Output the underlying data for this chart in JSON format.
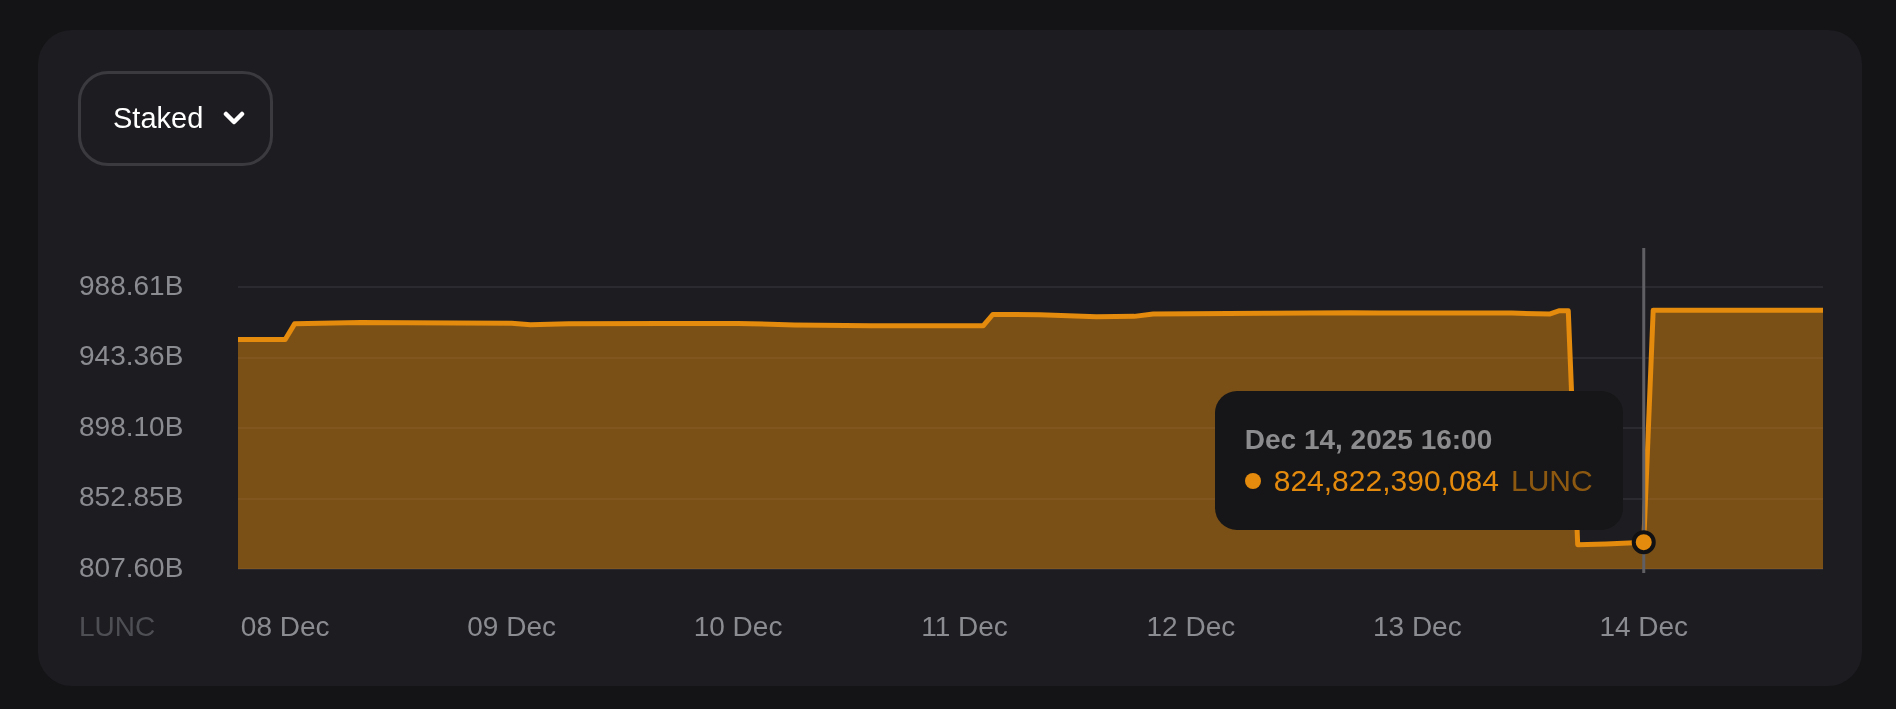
{
  "chart_data": {
    "type": "area",
    "title": "Staked",
    "ylabel": "LUNC",
    "x": [
      "2025-12-08T11:00",
      "2025-12-08T16:00",
      "2025-12-08T17:00",
      "2025-12-09T00:00",
      "2025-12-09T10:00",
      "2025-12-09T16:00",
      "2025-12-09T18:00",
      "2025-12-09T22:00",
      "2025-12-10T08:00",
      "2025-12-10T16:00",
      "2025-12-10T22:00",
      "2025-12-11T06:00",
      "2025-12-11T18:00",
      "2025-12-11T19:00",
      "2025-12-12T00:00",
      "2025-12-12T06:00",
      "2025-12-12T10:00",
      "2025-12-12T12:00",
      "2025-12-13T00:00",
      "2025-12-13T09:00",
      "2025-12-13T12:00",
      "2025-12-14T02:00",
      "2025-12-14T06:00",
      "2025-12-14T07:00",
      "2025-12-14T08:00",
      "2025-12-14T09:00",
      "2025-12-14T12:00",
      "2025-12-14T15:00",
      "2025-12-14T16:00",
      "2025-12-14T17:00",
      "2025-12-15T11:00"
    ],
    "series": [
      {
        "color": "#e48a0c",
        "values": [
          955.0,
          955.0,
          965.0,
          965.8,
          965.6,
          965.4,
          964.4,
          965.0,
          965.3,
          965.3,
          964.3,
          963.8,
          963.8,
          971.0,
          970.9,
          969.6,
          969.8,
          971.3,
          971.8,
          972.2,
          971.9,
          971.9,
          971.3,
          973.4,
          973.4,
          823.2,
          823.6,
          824.4,
          824.8,
          973.7,
          973.7
        ]
      },
      {
        "type": "scatter",
        "x": [
          "2025-12-14T16:00"
        ],
        "values": [
          824.8
        ],
        "color": "#e48a0c",
        "marker": "circle"
      }
    ],
    "xlim": [
      "2025-12-08T11:00",
      "2025-12-15T11:00"
    ],
    "xticks": [
      {
        "value": "2025-12-08T16:00",
        "label": "08 Dec"
      },
      {
        "value": "2025-12-09T16:00",
        "label": "09 Dec"
      },
      {
        "value": "2025-12-10T16:00",
        "label": "10 Dec"
      },
      {
        "value": "2025-12-11T16:00",
        "label": "11 Dec"
      },
      {
        "value": "2025-12-12T16:00",
        "label": "12 Dec"
      },
      {
        "value": "2025-12-13T16:00",
        "label": "13 Dec"
      },
      {
        "value": "2025-12-14T16:00",
        "label": "14 Dec"
      }
    ],
    "ylim": [
      807.6,
      1013.7
    ],
    "yticks": [
      {
        "value": 807.6,
        "label": "807.60B"
      },
      {
        "value": 852.85,
        "label": "852.85B"
      },
      {
        "value": 898.1,
        "label": "898.10B"
      },
      {
        "value": 943.36,
        "label": "943.36B"
      },
      {
        "value": 988.61,
        "label": "988.61B"
      }
    ],
    "grid": "y",
    "legend": false,
    "ref_lines": [
      {
        "axis": "x",
        "value": "2025-12-14T16:00",
        "color": "#5f5f64"
      }
    ],
    "annotations": [
      "Dec 14, 2025 16:00",
      "824,822,390,084"
    ]
  }
}
